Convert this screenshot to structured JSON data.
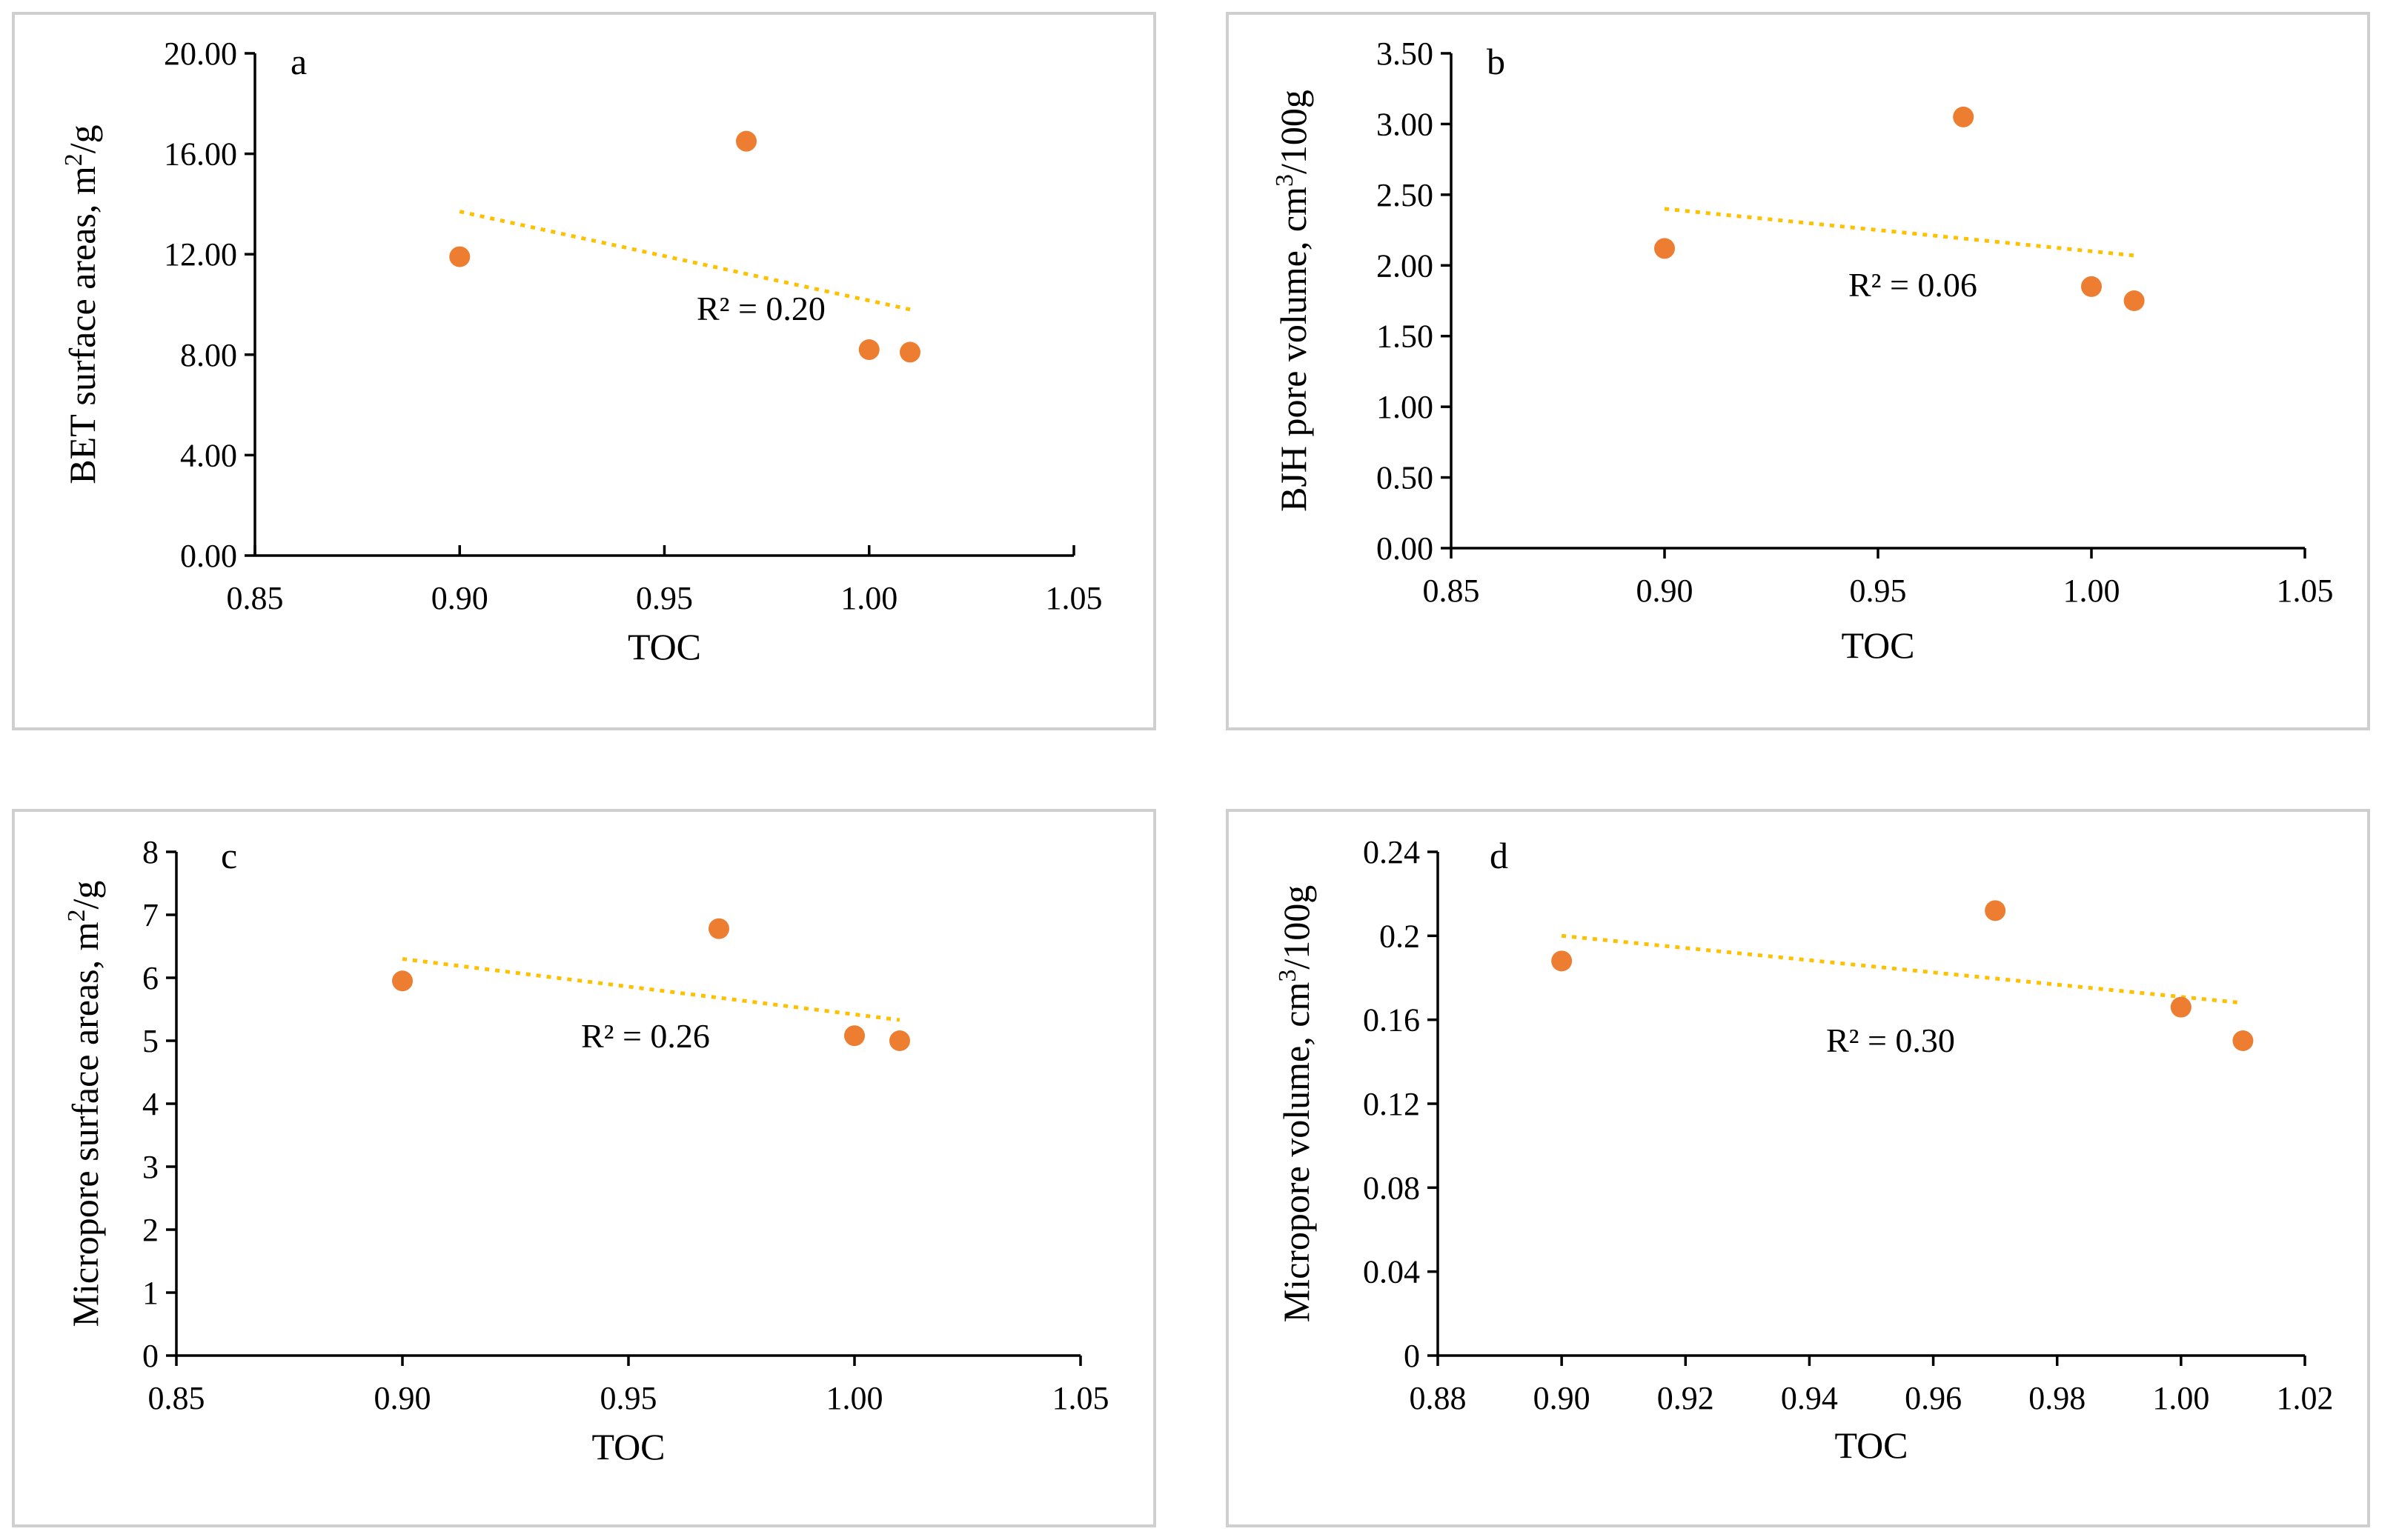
{
  "colors": {
    "point": "#ED7D31",
    "trendline": "#FFC000",
    "axis": "#000000",
    "frame": "#CFCFCF"
  },
  "chart_data": [
    {
      "type": "scatter",
      "panel_letter": "a",
      "xlabel": "TOC",
      "ylabel_text": "BET surface areas, m",
      "ylabel_sup": "2",
      "ylabel_unit": "/g",
      "xlim": [
        0.85,
        1.05
      ],
      "ylim": [
        0,
        20
      ],
      "x_ticks": [
        {
          "value": 0.85,
          "label": "0.85"
        },
        {
          "value": 0.9,
          "label": "0.90"
        },
        {
          "value": 0.95,
          "label": "0.95"
        },
        {
          "value": 1.0,
          "label": "1.00"
        },
        {
          "value": 1.05,
          "label": "1.05"
        }
      ],
      "y_ticks": [
        {
          "value": 0,
          "label": "0.00"
        },
        {
          "value": 4,
          "label": "4.00"
        },
        {
          "value": 8,
          "label": "8.00"
        },
        {
          "value": 12,
          "label": "12.00"
        },
        {
          "value": 16,
          "label": "16.00"
        },
        {
          "value": 20,
          "label": "20.00"
        }
      ],
      "points": [
        {
          "x": 0.9,
          "y": 11.9
        },
        {
          "x": 0.97,
          "y": 16.5
        },
        {
          "x": 1.0,
          "y": 8.2
        },
        {
          "x": 1.01,
          "y": 8.1
        }
      ],
      "trendline": {
        "type": "linear",
        "x_start": 0.9,
        "y_start": 13.7,
        "x_end": 1.01,
        "y_end": 9.8
      },
      "annotation": "R² = 0.20"
    },
    {
      "type": "scatter",
      "panel_letter": "b",
      "xlabel": "TOC",
      "ylabel_text": "BJH pore volume, cm",
      "ylabel_sup": "3",
      "ylabel_unit": "/100g",
      "xlim": [
        0.85,
        1.05
      ],
      "ylim": [
        0,
        3.5
      ],
      "x_ticks": [
        {
          "value": 0.85,
          "label": "0.85"
        },
        {
          "value": 0.9,
          "label": "0.90"
        },
        {
          "value": 0.95,
          "label": "0.95"
        },
        {
          "value": 1.0,
          "label": "1.00"
        },
        {
          "value": 1.05,
          "label": "1.05"
        }
      ],
      "y_ticks": [
        {
          "value": 0,
          "label": "0.00"
        },
        {
          "value": 0.5,
          "label": "0.50"
        },
        {
          "value": 1.0,
          "label": "1.00"
        },
        {
          "value": 1.5,
          "label": "1.50"
        },
        {
          "value": 2.0,
          "label": "2.00"
        },
        {
          "value": 2.5,
          "label": "2.50"
        },
        {
          "value": 3.0,
          "label": "3.00"
        },
        {
          "value": 3.5,
          "label": "3.50"
        }
      ],
      "points": [
        {
          "x": 0.9,
          "y": 2.12
        },
        {
          "x": 0.97,
          "y": 3.05
        },
        {
          "x": 1.0,
          "y": 1.85
        },
        {
          "x": 1.01,
          "y": 1.75
        }
      ],
      "trendline": {
        "type": "linear",
        "x_start": 0.9,
        "y_start": 2.4,
        "x_end": 1.01,
        "y_end": 2.07
      },
      "annotation": "R² = 0.06"
    },
    {
      "type": "scatter",
      "panel_letter": "c",
      "xlabel": "TOC",
      "ylabel_text": "Micropore surface areas, m",
      "ylabel_sup": "2",
      "ylabel_unit": "/g",
      "xlim": [
        0.85,
        1.05
      ],
      "ylim": [
        0,
        8
      ],
      "x_ticks": [
        {
          "value": 0.85,
          "label": "0.85"
        },
        {
          "value": 0.9,
          "label": "0.90"
        },
        {
          "value": 0.95,
          "label": "0.95"
        },
        {
          "value": 1.0,
          "label": "1.00"
        },
        {
          "value": 1.05,
          "label": "1.05"
        }
      ],
      "y_ticks": [
        {
          "value": 0,
          "label": "0"
        },
        {
          "value": 1,
          "label": "1"
        },
        {
          "value": 2,
          "label": "2"
        },
        {
          "value": 3,
          "label": "3"
        },
        {
          "value": 4,
          "label": "4"
        },
        {
          "value": 5,
          "label": "5"
        },
        {
          "value": 6,
          "label": "6"
        },
        {
          "value": 7,
          "label": "7"
        },
        {
          "value": 8,
          "label": "8"
        }
      ],
      "points": [
        {
          "x": 0.9,
          "y": 5.95
        },
        {
          "x": 0.97,
          "y": 6.78
        },
        {
          "x": 1.0,
          "y": 5.08
        },
        {
          "x": 1.01,
          "y": 5.0
        }
      ],
      "trendline": {
        "type": "linear",
        "x_start": 0.9,
        "y_start": 6.3,
        "x_end": 1.01,
        "y_end": 5.33
      },
      "annotation": "R² = 0.26"
    },
    {
      "type": "scatter",
      "panel_letter": "d",
      "xlabel": "TOC",
      "ylabel_text": "Micropore volume, cm",
      "ylabel_sup": "3",
      "ylabel_unit": "/100g",
      "xlim": [
        0.88,
        1.02
      ],
      "ylim": [
        0,
        0.24
      ],
      "x_ticks": [
        {
          "value": 0.88,
          "label": "0.88"
        },
        {
          "value": 0.9,
          "label": "0.90"
        },
        {
          "value": 0.92,
          "label": "0.92"
        },
        {
          "value": 0.94,
          "label": "0.94"
        },
        {
          "value": 0.96,
          "label": "0.96"
        },
        {
          "value": 0.98,
          "label": "0.98"
        },
        {
          "value": 1.0,
          "label": "1.00"
        },
        {
          "value": 1.02,
          "label": "1.02"
        }
      ],
      "y_ticks": [
        {
          "value": 0,
          "label": "0"
        },
        {
          "value": 0.04,
          "label": "0.04"
        },
        {
          "value": 0.08,
          "label": "0.08"
        },
        {
          "value": 0.12,
          "label": "0.12"
        },
        {
          "value": 0.16,
          "label": "0.16"
        },
        {
          "value": 0.2,
          "label": "0.2"
        },
        {
          "value": 0.24,
          "label": "0.24"
        }
      ],
      "points": [
        {
          "x": 0.9,
          "y": 0.188
        },
        {
          "x": 0.97,
          "y": 0.212
        },
        {
          "x": 1.0,
          "y": 0.166
        },
        {
          "x": 1.01,
          "y": 0.15
        }
      ],
      "trendline": {
        "type": "linear",
        "x_start": 0.9,
        "y_start": 0.2,
        "x_end": 1.01,
        "y_end": 0.168
      },
      "annotation": "R² = 0.30"
    }
  ]
}
